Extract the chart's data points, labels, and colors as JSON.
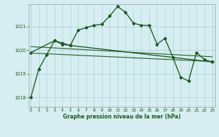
{
  "title": "Graphe pression niveau de la mer (hPa)",
  "background_color": "#d6eef2",
  "plot_bg_color": "#d6eef2",
  "grid_color": "#aacdd6",
  "line_color": "#1a5c1a",
  "x_ticks": [
    0,
    1,
    2,
    3,
    4,
    5,
    6,
    7,
    8,
    9,
    10,
    11,
    12,
    13,
    14,
    15,
    16,
    17,
    18,
    19,
    20,
    21,
    22,
    23
  ],
  "y_ticks": [
    1018,
    1019,
    1020,
    1021
  ],
  "ylim": [
    1017.6,
    1021.95
  ],
  "xlim": [
    -0.3,
    23.3
  ],
  "series1_x": [
    0,
    1,
    2,
    3,
    4,
    5,
    6,
    7,
    8,
    9,
    10,
    11,
    12,
    13,
    14,
    15,
    16,
    17,
    18,
    19,
    20,
    21,
    22,
    23
  ],
  "series1_y": [
    1018.0,
    1019.2,
    1019.8,
    1020.4,
    1020.3,
    1020.2,
    1020.85,
    1020.95,
    1021.05,
    1021.1,
    1021.45,
    1021.85,
    1021.6,
    1021.15,
    1021.05,
    1021.05,
    1020.25,
    1020.5,
    1019.7,
    1018.85,
    1018.7,
    1019.9,
    1019.6,
    1019.5
  ],
  "series2_x": [
    0,
    3,
    4,
    5,
    23
  ],
  "series2_y": [
    1019.9,
    1020.4,
    1020.25,
    1020.2,
    1019.5
  ],
  "trend1_x": [
    0,
    23
  ],
  "trend1_y": [
    1020.15,
    1019.72
  ],
  "trend2_x": [
    0,
    23
  ],
  "trend2_y": [
    1019.88,
    1019.52
  ]
}
